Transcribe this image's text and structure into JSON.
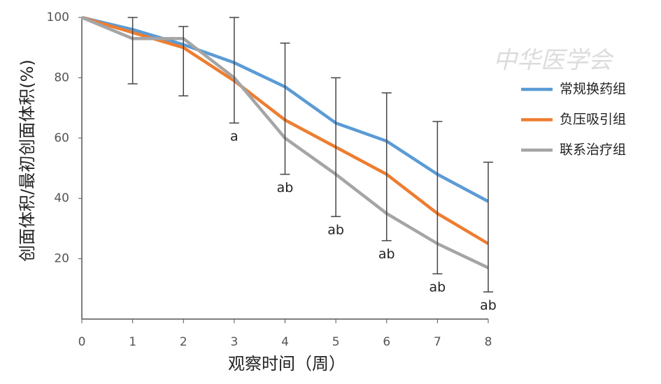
{
  "chart_data": {
    "type": "line",
    "watermark": "中华医学会",
    "xlabel": "观察时间（周）",
    "ylabel": "创面体积/最初创面体积(%)",
    "x": [
      0,
      1,
      2,
      3,
      4,
      5,
      6,
      7,
      8
    ],
    "xlim": [
      0,
      8
    ],
    "xticks": [
      0,
      1,
      2,
      3,
      4,
      5,
      6,
      7,
      8
    ],
    "ylim": [
      0,
      100
    ],
    "yticks": [
      20,
      40,
      60,
      80,
      100
    ],
    "legend": "right",
    "series": [
      {
        "name": "常规换药组",
        "color": "#5b9bd5",
        "values": [
          100,
          96,
          91,
          85,
          77,
          65,
          59,
          48,
          39
        ]
      },
      {
        "name": "负压吸引组",
        "color": "#ed7d31",
        "values": [
          100,
          95,
          90,
          79,
          66,
          57,
          48,
          35,
          25
        ]
      },
      {
        "name": "联系治疗组",
        "color": "#a5a5a5",
        "values": [
          100,
          93,
          93,
          80,
          60,
          48,
          35,
          25,
          17
        ]
      }
    ],
    "error_bars": {
      "color": "#444444",
      "high": [
        null,
        100,
        97,
        100,
        91.5,
        80,
        75,
        65.5,
        52
      ],
      "low": [
        null,
        78,
        74,
        65,
        48,
        34,
        26,
        15,
        9
      ]
    },
    "annotations": [
      {
        "x": 3,
        "text": "a"
      },
      {
        "x": 4,
        "text": "ab"
      },
      {
        "x": 5,
        "text": "ab"
      },
      {
        "x": 6,
        "text": "ab"
      },
      {
        "x": 7,
        "text": "ab"
      },
      {
        "x": 8,
        "text": "ab"
      }
    ]
  }
}
